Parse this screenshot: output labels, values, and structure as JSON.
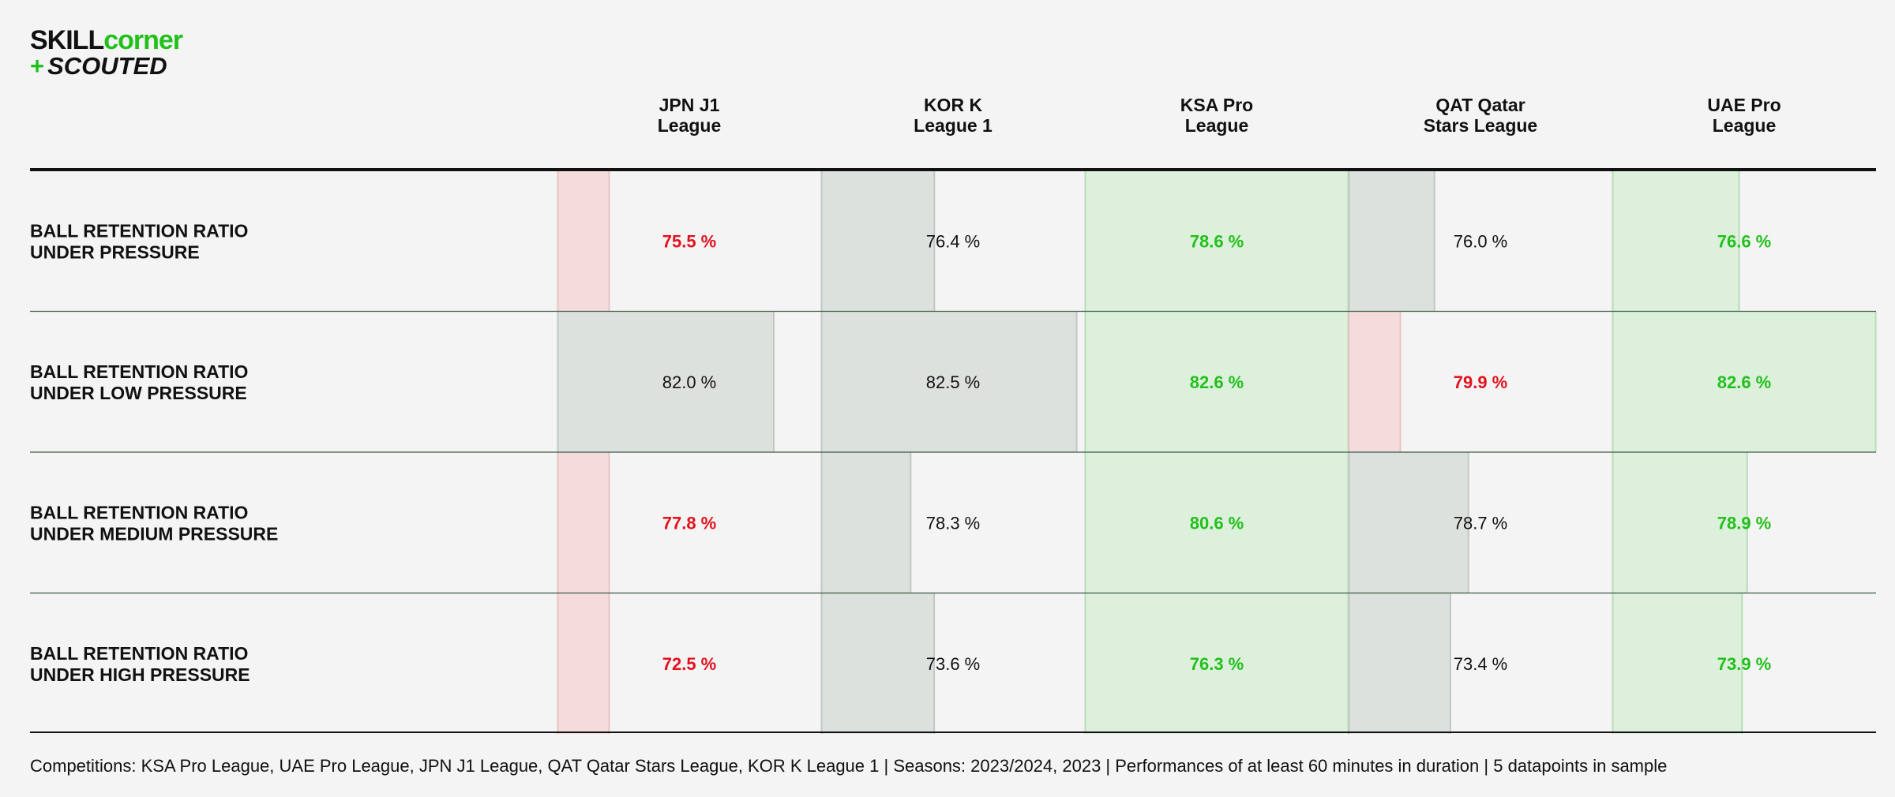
{
  "logo": {
    "line1a": "SKILL",
    "line1b": "corner",
    "line2plus": "+",
    "line2": "SCOUTED"
  },
  "footer": "Competitions: KSA Pro League, UAE Pro League, JPN J1 League, QAT Qatar Stars League, KOR K League 1 | Seasons: 2023/2024, 2023 | Performances of at least 60 minutes in duration | 5 datapoints in sample",
  "colors": {
    "good": "#22c01b",
    "bad": "#e3101e",
    "neutral": "#111111",
    "good_fill": "#dcf0dc",
    "bad_fill": "#f5dcdc",
    "neutral_fill": "#dde1de"
  },
  "chart_data": {
    "type": "table",
    "columns": [
      [
        "JPN J1",
        "League"
      ],
      [
        "KOR K",
        "League 1"
      ],
      [
        "KSA Pro",
        "League"
      ],
      [
        "QAT Qatar",
        "Stars League"
      ],
      [
        "UAE Pro",
        "League"
      ]
    ],
    "rows": [
      {
        "label": [
          "BALL RETENTION RATIO",
          "UNDER PRESSURE"
        ],
        "values": [
          75.5,
          76.4,
          78.6,
          76.0,
          76.6
        ],
        "display": [
          "75.5 %",
          "76.4 %",
          "78.6 %",
          "76.0 %",
          "76.6 %"
        ],
        "status": [
          "bad",
          "neutral",
          "good",
          "neutral",
          "good"
        ]
      },
      {
        "label": [
          "BALL RETENTION RATIO",
          "UNDER LOW PRESSURE"
        ],
        "values": [
          82.0,
          82.5,
          82.6,
          79.9,
          82.6
        ],
        "display": [
          "82.0 %",
          "82.5 %",
          "82.6 %",
          "79.9 %",
          "82.6 %"
        ],
        "status": [
          "neutral",
          "neutral",
          "good",
          "bad",
          "good"
        ]
      },
      {
        "label": [
          "BALL RETENTION RATIO",
          "UNDER MEDIUM PRESSURE"
        ],
        "values": [
          77.8,
          78.3,
          80.6,
          78.7,
          78.9
        ],
        "display": [
          "77.8 %",
          "78.3 %",
          "80.6 %",
          "78.7 %",
          "78.9 %"
        ],
        "status": [
          "bad",
          "neutral",
          "good",
          "neutral",
          "good"
        ]
      },
      {
        "label": [
          "BALL RETENTION RATIO",
          "UNDER HIGH PRESSURE"
        ],
        "values": [
          72.5,
          73.6,
          76.3,
          73.4,
          73.9
        ],
        "display": [
          "72.5 %",
          "73.6 %",
          "76.3 %",
          "73.4 %",
          "73.9 %"
        ],
        "status": [
          "bad",
          "neutral",
          "good",
          "neutral",
          "good"
        ]
      }
    ]
  }
}
